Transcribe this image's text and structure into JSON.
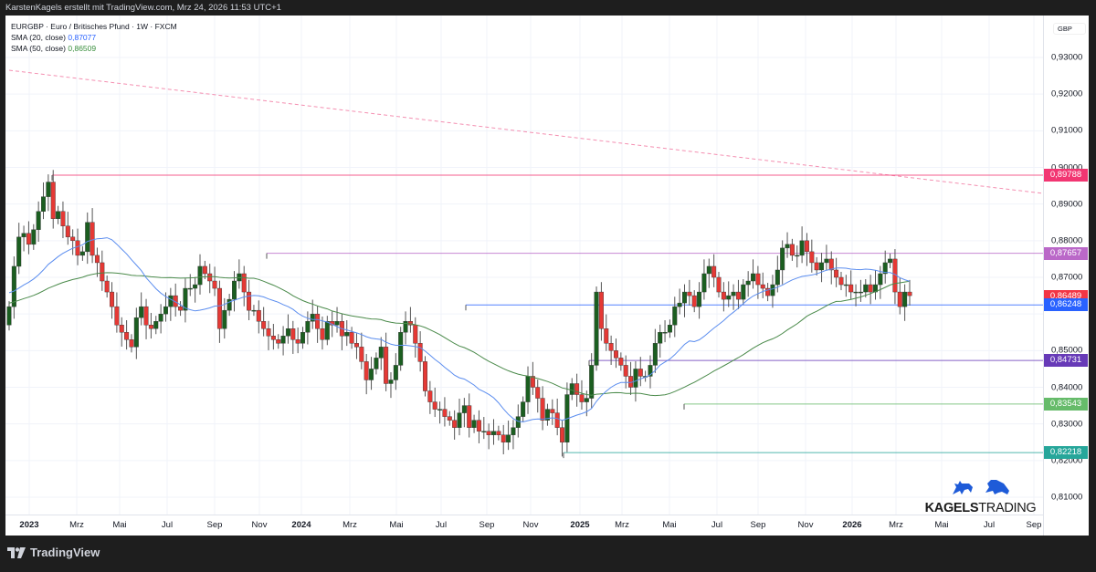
{
  "header": {
    "attribution": "KarstenKagels erstellt mit TradingView.com, Mrz 24, 2026 11:53 UTC+1"
  },
  "legend": {
    "symbol_line": "EURGBP · Euro / Britisches Pfund · 1W · FXCM",
    "sma20_label": "SMA (20, close)",
    "sma20_value": "0,87077",
    "sma50_label": "SMA (50, close)",
    "sma50_value": "0,86509"
  },
  "yaxis": {
    "currency": "GBP",
    "ticks": [
      "0,93000",
      "0,92000",
      "0,91000",
      "0,90000",
      "0,89000",
      "0,88000",
      "0,87000",
      "0,85000",
      "0,84000",
      "0,83000",
      "0,82000",
      "0,81000"
    ]
  },
  "badges": [
    {
      "label": "0,89788",
      "color": "#f23672"
    },
    {
      "label": "0,87657",
      "color": "#ba68c8"
    },
    {
      "label": "0,86489",
      "color": "#f23645"
    },
    {
      "label": "0,86248",
      "color": "#2962ff"
    },
    {
      "label": "0,84731",
      "color": "#673ab7"
    },
    {
      "label": "0,83543",
      "color": "#66bb6a"
    },
    {
      "label": "0,82218",
      "color": "#26a69a"
    }
  ],
  "xaxis": {
    "ticks": [
      "2023",
      "Mrz",
      "Mai",
      "Jul",
      "Sep",
      "Nov",
      "2024",
      "Mrz",
      "Mai",
      "Jul",
      "Sep",
      "Nov",
      "2025",
      "Mrz",
      "Mai",
      "Jul",
      "Sep",
      "Nov",
      "2026",
      "Mrz",
      "Mai",
      "Jul",
      "Sep"
    ]
  },
  "brand": {
    "bold": "KAGELS",
    "light": "TRADING"
  },
  "footer": {
    "logo_text": "TradingView"
  },
  "chart_data": {
    "type": "candlestick",
    "title": "EURGBP · Euro / Britisches Pfund · 1W · FXCM",
    "xlabel": "",
    "ylabel": "GBP",
    "ylim": [
      0.805,
      0.935
    ],
    "x_ticks": [
      "2023",
      "Mrz",
      "Mai",
      "Jul",
      "Sep",
      "Nov",
      "2024",
      "Mrz",
      "Mai",
      "Jul",
      "Sep",
      "Nov",
      "2025",
      "Mrz",
      "Mai",
      "Jul",
      "Sep",
      "Nov",
      "2026",
      "Mrz",
      "Mai",
      "Jul",
      "Sep"
    ],
    "y_ticks": [
      0.81,
      0.82,
      0.83,
      0.84,
      0.85,
      0.86,
      0.87,
      0.88,
      0.89,
      0.9,
      0.91,
      0.92,
      0.93
    ],
    "series": [
      {
        "name": "SMA (20, close)",
        "last_value": 0.87077,
        "color": "#5b8def"
      },
      {
        "name": "SMA (50, close)",
        "last_value": 0.86509,
        "color": "#4a8a4a"
      }
    ],
    "horizontal_levels": [
      {
        "value": 0.89788,
        "color": "#f23672"
      },
      {
        "value": 0.87657,
        "color": "#ba68c8"
      },
      {
        "value": 0.86248,
        "color": "#2962ff"
      },
      {
        "value": 0.84731,
        "color": "#673ab7"
      },
      {
        "value": 0.83543,
        "color": "#66bb6a"
      },
      {
        "value": 0.82218,
        "color": "#26a69a"
      }
    ],
    "trendline": {
      "type": "dashed",
      "from": [
        0.926,
        "late 2022"
      ],
      "to": [
        0.893,
        "Sep 2026"
      ],
      "color": "#f48fb1"
    },
    "last_close": 0.86489,
    "approx_closes": [
      0.862,
      0.873,
      0.881,
      0.882,
      0.879,
      0.883,
      0.888,
      0.892,
      0.896,
      0.886,
      0.888,
      0.884,
      0.881,
      0.88,
      0.876,
      0.877,
      0.885,
      0.876,
      0.874,
      0.869,
      0.866,
      0.862,
      0.857,
      0.855,
      0.853,
      0.851,
      0.859,
      0.862,
      0.857,
      0.856,
      0.858,
      0.86,
      0.862,
      0.865,
      0.862,
      0.861,
      0.867,
      0.867,
      0.868,
      0.873,
      0.871,
      0.869,
      0.867,
      0.856,
      0.861,
      0.864,
      0.869,
      0.871,
      0.866,
      0.861,
      0.861,
      0.858,
      0.856,
      0.854,
      0.853,
      0.852,
      0.854,
      0.856,
      0.853,
      0.852,
      0.855,
      0.858,
      0.86,
      0.856,
      0.853,
      0.858,
      0.857,
      0.858,
      0.854,
      0.855,
      0.852,
      0.851,
      0.847,
      0.842,
      0.845,
      0.848,
      0.851,
      0.841,
      0.842,
      0.846,
      0.855,
      0.858,
      0.857,
      0.852,
      0.847,
      0.839,
      0.836,
      0.834,
      0.834,
      0.832,
      0.831,
      0.829,
      0.833,
      0.835,
      0.829,
      0.831,
      0.828,
      0.828,
      0.827,
      0.828,
      0.827,
      0.825,
      0.827,
      0.829,
      0.832,
      0.836,
      0.843,
      0.84,
      0.837,
      0.831,
      0.834,
      0.833,
      0.829,
      0.825,
      0.838,
      0.841,
      0.838,
      0.836,
      0.837,
      0.846,
      0.866,
      0.856,
      0.852,
      0.85,
      0.848,
      0.846,
      0.843,
      0.84,
      0.845,
      0.843,
      0.843,
      0.846,
      0.852,
      0.855,
      0.855,
      0.857,
      0.862,
      0.863,
      0.866,
      0.865,
      0.862,
      0.866,
      0.871,
      0.873,
      0.87,
      0.866,
      0.864,
      0.865,
      0.866,
      0.864,
      0.868,
      0.869,
      0.871,
      0.868,
      0.867,
      0.865,
      0.868,
      0.872,
      0.878,
      0.879,
      0.876,
      0.876,
      0.88,
      0.877,
      0.874,
      0.872,
      0.874,
      0.875,
      0.872,
      0.87,
      0.868,
      0.868,
      0.866,
      0.866,
      0.866,
      0.868,
      0.866,
      0.868,
      0.871,
      0.874,
      0.875,
      0.866,
      0.862,
      0.866,
      0.865
    ]
  }
}
